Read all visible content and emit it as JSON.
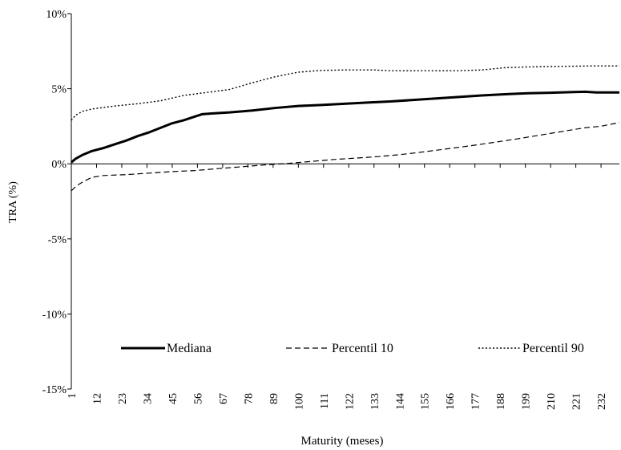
{
  "chart_data": {
    "type": "line",
    "title": "",
    "xlabel": "Maturity (meses)",
    "ylabel": "TRA (%)",
    "ylim": [
      -15,
      10
    ],
    "xlim": [
      1,
      240
    ],
    "yticks": [
      {
        "value": 10,
        "label": "10%"
      },
      {
        "value": 5,
        "label": "5%"
      },
      {
        "value": 0,
        "label": "0%"
      },
      {
        "value": -5,
        "label": "-5%"
      },
      {
        "value": -10,
        "label": "-10%"
      },
      {
        "value": -15,
        "label": "-15%"
      }
    ],
    "xticks": [
      1,
      12,
      23,
      34,
      45,
      56,
      67,
      78,
      89,
      100,
      111,
      122,
      133,
      144,
      155,
      166,
      177,
      188,
      199,
      210,
      221,
      232
    ],
    "grid": false,
    "legend_placement": "bottom",
    "series": [
      {
        "name": "Mediana",
        "style": "solid",
        "color": "#000000",
        "points": [
          [
            1,
            0.1
          ],
          [
            3,
            0.35
          ],
          [
            6,
            0.6
          ],
          [
            10,
            0.85
          ],
          [
            15,
            1.05
          ],
          [
            20,
            1.3
          ],
          [
            25,
            1.55
          ],
          [
            30,
            1.85
          ],
          [
            35,
            2.1
          ],
          [
            40,
            2.4
          ],
          [
            45,
            2.7
          ],
          [
            50,
            2.9
          ],
          [
            55,
            3.15
          ],
          [
            58,
            3.3
          ],
          [
            62,
            3.35
          ],
          [
            70,
            3.42
          ],
          [
            80,
            3.55
          ],
          [
            90,
            3.72
          ],
          [
            100,
            3.85
          ],
          [
            110,
            3.92
          ],
          [
            120,
            4.0
          ],
          [
            130,
            4.08
          ],
          [
            140,
            4.15
          ],
          [
            150,
            4.25
          ],
          [
            160,
            4.35
          ],
          [
            170,
            4.45
          ],
          [
            180,
            4.55
          ],
          [
            190,
            4.63
          ],
          [
            200,
            4.7
          ],
          [
            210,
            4.73
          ],
          [
            220,
            4.78
          ],
          [
            225,
            4.8
          ],
          [
            230,
            4.75
          ],
          [
            240,
            4.75
          ]
        ]
      },
      {
        "name": "Percentil 10",
        "style": "dashed",
        "color": "#000000",
        "points": [
          [
            1,
            -1.8
          ],
          [
            3,
            -1.5
          ],
          [
            6,
            -1.2
          ],
          [
            10,
            -0.9
          ],
          [
            15,
            -0.78
          ],
          [
            25,
            -0.72
          ],
          [
            35,
            -0.62
          ],
          [
            45,
            -0.52
          ],
          [
            55,
            -0.45
          ],
          [
            65,
            -0.32
          ],
          [
            75,
            -0.2
          ],
          [
            85,
            -0.08
          ],
          [
            95,
            0.02
          ],
          [
            105,
            0.15
          ],
          [
            115,
            0.28
          ],
          [
            125,
            0.38
          ],
          [
            135,
            0.48
          ],
          [
            145,
            0.62
          ],
          [
            155,
            0.8
          ],
          [
            165,
            1.0
          ],
          [
            175,
            1.2
          ],
          [
            185,
            1.42
          ],
          [
            195,
            1.65
          ],
          [
            205,
            1.9
          ],
          [
            215,
            2.15
          ],
          [
            225,
            2.4
          ],
          [
            232,
            2.5
          ],
          [
            240,
            2.75
          ]
        ]
      },
      {
        "name": "Percentil 90",
        "style": "dotted",
        "color": "#000000",
        "points": [
          [
            1,
            2.9
          ],
          [
            3,
            3.25
          ],
          [
            6,
            3.5
          ],
          [
            10,
            3.65
          ],
          [
            20,
            3.85
          ],
          [
            30,
            4.0
          ],
          [
            40,
            4.2
          ],
          [
            50,
            4.55
          ],
          [
            60,
            4.75
          ],
          [
            70,
            4.95
          ],
          [
            80,
            5.4
          ],
          [
            90,
            5.8
          ],
          [
            100,
            6.1
          ],
          [
            110,
            6.22
          ],
          [
            120,
            6.25
          ],
          [
            133,
            6.25
          ],
          [
            140,
            6.2
          ],
          [
            150,
            6.2
          ],
          [
            160,
            6.2
          ],
          [
            170,
            6.2
          ],
          [
            180,
            6.25
          ],
          [
            190,
            6.4
          ],
          [
            200,
            6.45
          ],
          [
            210,
            6.48
          ],
          [
            220,
            6.5
          ],
          [
            230,
            6.52
          ],
          [
            240,
            6.52
          ]
        ]
      }
    ]
  }
}
